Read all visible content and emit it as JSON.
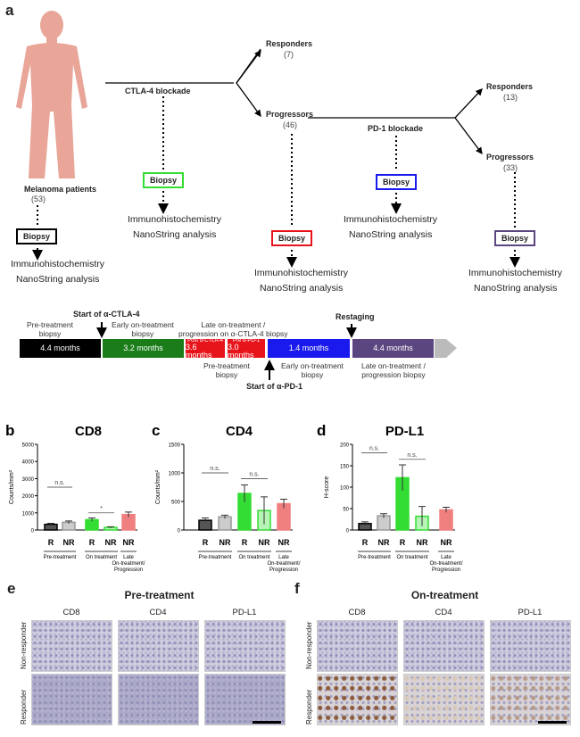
{
  "panel_a": {
    "label": "a",
    "patients": {
      "label": "Melanoma patients",
      "n": "(53)"
    },
    "ctla4": "CTLA-4 blockade",
    "pd1": "PD-1 blockade",
    "responders1": {
      "label": "Responders",
      "n": "(7)"
    },
    "progressors1": {
      "label": "Progressors",
      "n": "(46)"
    },
    "responders2": {
      "label": "Responders",
      "n": "(13)"
    },
    "progressors2": {
      "label": "Progressors",
      "n": "(33)"
    },
    "biopsy": "Biopsy",
    "ihc": "Immunohistochemistry",
    "nanostring": "NanoString analysis",
    "biopsy_colors": {
      "pre": "#000000",
      "early": "#33dd33",
      "late": "#e8141c",
      "pd1": "#1a1aee",
      "post": "#5c4680"
    },
    "timeline": {
      "start_ctla4": "Start of α-CTLA-4",
      "start_pd1": "Start of α-PD-1",
      "restaging": "Restaging",
      "seg1": "4.4 months",
      "seg2": "3.2 months",
      "seg3_top": "Post α-CTLA-4",
      "seg3": "3.6 months",
      "seg4_top": "Pre α-PD-1",
      "seg4": "3.0 months",
      "seg5": "1.4 months",
      "seg6": "4.4 months",
      "l_pre": "Pre-treatment\nbiopsy",
      "l_early": "Early on-treatment\nbiopsy",
      "l_late": "Late on-treatment /\nprogression on α-CTLA-4 biopsy",
      "l_pre2": "Pre-treatment\nbiopsy",
      "l_early2": "Early on-treatment\nbiopsy",
      "l_late2": "Late on-treatment /\nprogression biopsy"
    }
  },
  "chart_data": [
    {
      "panel": "b",
      "type": "bar",
      "title": "CD8",
      "ylabel": "Counts/mm²",
      "ylim": [
        0,
        5000
      ],
      "yticks": [
        "0",
        "1000",
        "2000",
        "3000",
        "4000",
        "5000"
      ],
      "categories": [
        "R",
        "NR",
        "R",
        "NR",
        "NR"
      ],
      "values": [
        330,
        450,
        600,
        150,
        900
      ],
      "errors": [
        60,
        80,
        100,
        40,
        150
      ],
      "colors": [
        "#555555",
        "#cccccc",
        "#33dd33",
        "#b6f5b6",
        "#f08080"
      ],
      "groups": [
        "Pre-treatment",
        "On treatment",
        "Late On-treatment/ Progression"
      ],
      "sig": [
        "n.s.",
        "*"
      ]
    },
    {
      "panel": "c",
      "type": "bar",
      "title": "CD4",
      "ylabel": "Counts/mm²",
      "ylim": [
        0,
        1500
      ],
      "yticks": [
        "0",
        "500",
        "1000",
        "1500"
      ],
      "categories": [
        "R",
        "NR",
        "R",
        "NR",
        "NR"
      ],
      "values": [
        170,
        230,
        640,
        340,
        460
      ],
      "errors": [
        40,
        30,
        150,
        240,
        80
      ],
      "colors": [
        "#555555",
        "#cccccc",
        "#33dd33",
        "#b6f5b6",
        "#f08080"
      ],
      "groups": [
        "Pre-treatment",
        "On treatment",
        "Late On-treatment/ Progression"
      ],
      "sig": [
        "n.s.",
        "n.s."
      ]
    },
    {
      "panel": "d",
      "type": "bar",
      "title": "PD-L1",
      "ylabel": "H-score",
      "ylim": [
        0,
        200
      ],
      "yticks": [
        "0",
        "50",
        "100",
        "150",
        "200"
      ],
      "categories": [
        "R",
        "NR",
        "R",
        "NR",
        "NR"
      ],
      "values": [
        15,
        33,
        122,
        32,
        47
      ],
      "errors": [
        4,
        5,
        30,
        23,
        6
      ],
      "colors": [
        "#555555",
        "#cccccc",
        "#33dd33",
        "#b6f5b6",
        "#f08080"
      ],
      "groups": [
        "Pre-treatment",
        "On treatment",
        "Late On-treatment/ Progression"
      ],
      "sig": [
        "n.s.",
        "n.s."
      ]
    }
  ],
  "panel_e": {
    "label": "e",
    "title": "Pre-treatment",
    "cols": [
      "CD8",
      "CD4",
      "PD-L1"
    ],
    "rows": [
      "Non-responder",
      "Responder"
    ]
  },
  "panel_f": {
    "label": "f",
    "title": "On-treatment",
    "cols": [
      "CD8",
      "CD4",
      "PD-L1"
    ],
    "rows": [
      "Non-responder",
      "Responder"
    ]
  }
}
